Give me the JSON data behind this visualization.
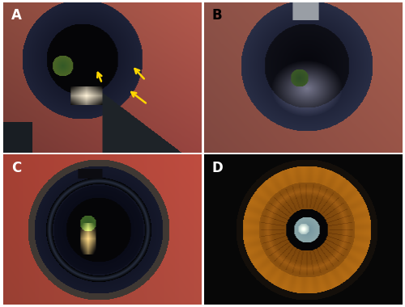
{
  "figure_width": 5.0,
  "figure_height": 3.8,
  "dpi": 100,
  "border_color": "#ffffff",
  "label_color_white": "#ffffff",
  "label_color_black": "#000000",
  "label_fontsize": 12,
  "label_fontweight": "bold",
  "panels": [
    {
      "id": "A",
      "row": 0,
      "col": 0,
      "label_color": "#ffffff"
    },
    {
      "id": "B",
      "row": 0,
      "col": 1,
      "label_color": "#000000"
    },
    {
      "id": "C",
      "row": 1,
      "col": 0,
      "label_color": "#ffffff"
    },
    {
      "id": "D",
      "row": 1,
      "col": 1,
      "label_color": "#ffffff"
    }
  ]
}
